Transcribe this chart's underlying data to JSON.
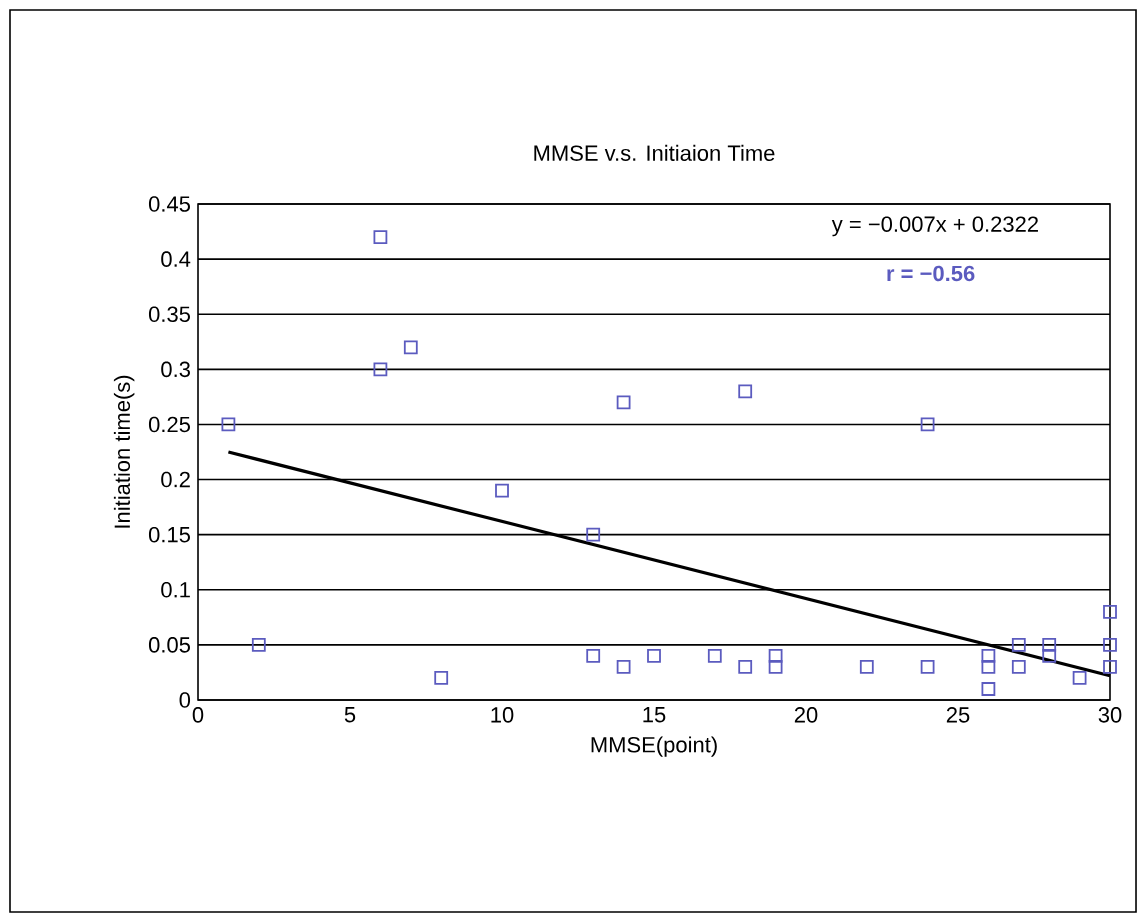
{
  "chart_data": {
    "type": "scatter",
    "title": "MMSE v.s. Initiaion Time",
    "xlabel": "MMSE(point)",
    "ylabel": "Initiation time(s)",
    "xlim": [
      0,
      30
    ],
    "xticks": [
      0,
      5,
      10,
      15,
      20,
      25,
      30
    ],
    "ylim": [
      0,
      0.45
    ],
    "yticks": [
      0,
      0.05,
      0.1,
      0.15,
      0.2,
      0.25,
      0.3,
      0.35,
      0.4,
      0.45
    ],
    "grid": "y",
    "annotations": [
      "y = −0.007x + 0.2322",
      "r = −0.56"
    ],
    "series": [
      {
        "color": "#5b5bbf",
        "marker": "square",
        "x": [
          1,
          2,
          6,
          6,
          7,
          8,
          10,
          13,
          13,
          14,
          14,
          15,
          17,
          18,
          18,
          19,
          19,
          22,
          24,
          24,
          26,
          26,
          26,
          27,
          27,
          28,
          28,
          29,
          30,
          30,
          30
        ],
        "values": [
          0.25,
          0.05,
          0.42,
          0.3,
          0.32,
          0.02,
          0.19,
          0.15,
          0.04,
          0.27,
          0.03,
          0.04,
          0.04,
          0.28,
          0.03,
          0.04,
          0.03,
          0.03,
          0.25,
          0.03,
          0.04,
          0.03,
          0.01,
          0.05,
          0.03,
          0.05,
          0.04,
          0.02,
          0.08,
          0.05,
          0.03
        ]
      },
      {
        "type": "line",
        "color": "#000000",
        "marker": "none",
        "x": [
          1,
          30
        ],
        "values": [
          0.225,
          0.022
        ]
      }
    ]
  }
}
